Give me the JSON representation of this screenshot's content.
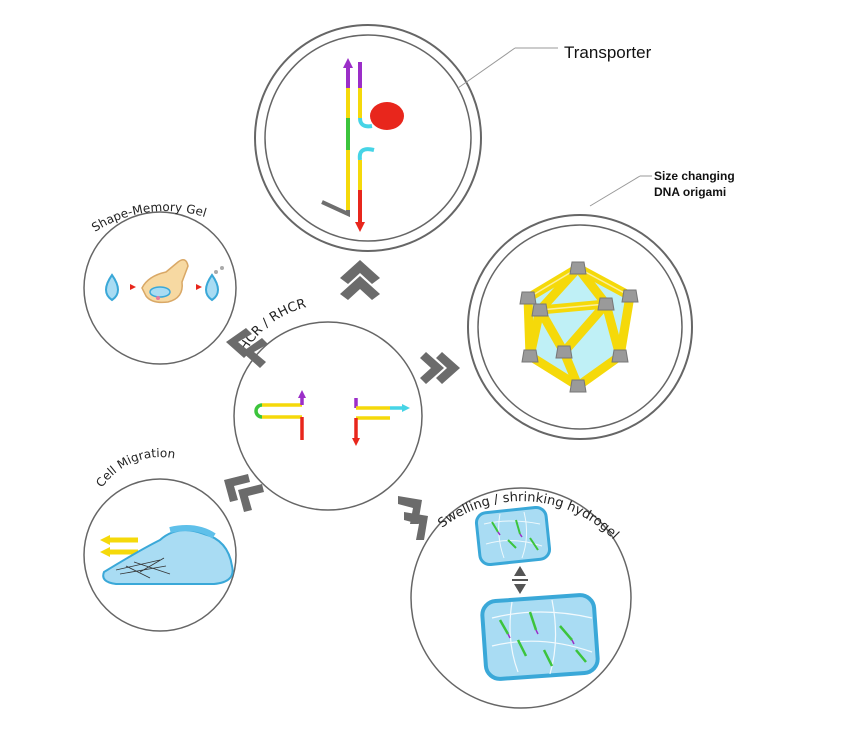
{
  "labels": {
    "center": "HCR / RHCR",
    "transporter": "Transporter",
    "size_changing_line1": "Size changing",
    "size_changing_line2": "DNA origami",
    "shape_memory": "Shape-Memory Gel",
    "cell_migration": "Cell Migration",
    "hydrogel": "Swelling / shrinking hydrogel"
  },
  "colors": {
    "yellow": "#f5d90a",
    "red": "#e8261c",
    "green": "#3cc43c",
    "purple": "#9b2ec8",
    "cyan": "#46d4e6",
    "gray": "#6e6e6e",
    "gel_blue": "#a9dcf3",
    "chevron": "#6b6b6b"
  },
  "icons": [
    "chevron-up-icon",
    "chevron-right-icon",
    "chevron-down-right-icon",
    "chevron-down-left-icon",
    "chevron-up-left-icon",
    "water-drop-icon",
    "hand-icon",
    "cell-icon",
    "icosahedron-icon",
    "hydrogel-cube-icon"
  ]
}
